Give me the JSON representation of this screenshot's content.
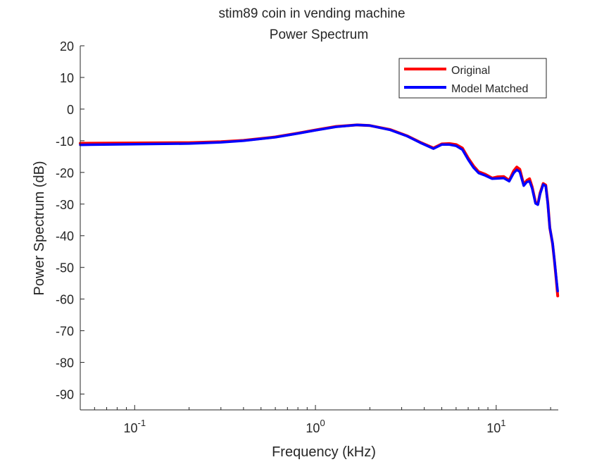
{
  "chart_data": {
    "type": "line",
    "title": [
      "stim89 coin in vending machine",
      "Power Spectrum"
    ],
    "xlabel": "Frequency (kHz)",
    "ylabel": "Power Spectrum (dB)",
    "xscale": "log",
    "xlim": [
      0.05,
      22.05
    ],
    "ylim": [
      -95,
      20
    ],
    "x_ticks": [
      0.1,
      1,
      10
    ],
    "x_tick_labels": [
      {
        "base": "10",
        "exp": "-1"
      },
      {
        "base": "10",
        "exp": "0"
      },
      {
        "base": "10",
        "exp": "1"
      }
    ],
    "y_ticks": [
      20,
      10,
      0,
      -10,
      -20,
      -30,
      -40,
      -50,
      -60,
      -70,
      -80,
      -90
    ],
    "y_tick_labels": [
      "20",
      "10",
      "0",
      "-10",
      "-20",
      "-30",
      "-40",
      "-50",
      "-60",
      "-70",
      "-80",
      "-90"
    ],
    "grid": false,
    "legend_position": "top-right",
    "series": [
      {
        "name": "Original",
        "color": "#ff0000",
        "x": [
          0.05,
          0.1,
          0.2,
          0.3,
          0.4,
          0.6,
          0.8,
          1.0,
          1.3,
          1.7,
          2.0,
          2.6,
          3.2,
          3.8,
          4.5,
          5.0,
          5.5,
          6.0,
          6.5,
          7.0,
          7.5,
          8.0,
          8.7,
          9.5,
          10.2,
          11.0,
          11.8,
          12.5,
          13.0,
          13.5,
          14.2,
          14.8,
          15.3,
          15.8,
          16.5,
          17.0,
          17.5,
          18.2,
          18.8,
          19.3,
          19.8,
          20.5,
          21.0,
          21.5,
          21.9
        ],
        "y": [
          -10.8,
          -10.7,
          -10.6,
          -10.3,
          -9.9,
          -8.8,
          -7.6,
          -6.6,
          -5.5,
          -5.0,
          -5.2,
          -6.5,
          -8.4,
          -10.5,
          -12.3,
          -11.0,
          -10.9,
          -11.2,
          -12.3,
          -15.5,
          -18.0,
          -19.8,
          -20.6,
          -21.8,
          -21.4,
          -21.3,
          -22.5,
          -19.5,
          -18.3,
          -19.0,
          -23.8,
          -22.5,
          -22.0,
          -24.5,
          -29.5,
          -30.0,
          -26.5,
          -23.5,
          -24.0,
          -29.5,
          -37.5,
          -42.5,
          -48.0,
          -54.0,
          -59.0
        ]
      },
      {
        "name": "Model Matched",
        "color": "#0000ff",
        "x": [
          0.05,
          0.1,
          0.2,
          0.3,
          0.4,
          0.6,
          0.8,
          1.0,
          1.3,
          1.7,
          2.0,
          2.6,
          3.2,
          3.8,
          4.5,
          5.0,
          5.5,
          6.0,
          6.5,
          7.0,
          7.5,
          8.0,
          8.7,
          9.5,
          10.2,
          11.0,
          11.8,
          12.5,
          13.0,
          13.5,
          14.2,
          14.8,
          15.3,
          15.8,
          16.5,
          17.0,
          17.5,
          18.2,
          18.8,
          19.3,
          19.8,
          20.5,
          21.0,
          21.5,
          21.9
        ],
        "y": [
          -11.3,
          -11.1,
          -10.9,
          -10.5,
          -10.0,
          -8.9,
          -7.7,
          -6.7,
          -5.6,
          -5.0,
          -5.2,
          -6.6,
          -8.5,
          -10.6,
          -12.5,
          -11.2,
          -11.2,
          -11.6,
          -12.8,
          -16.0,
          -18.5,
          -20.2,
          -21.0,
          -22.0,
          -21.9,
          -21.8,
          -22.8,
          -20.2,
          -19.2,
          -19.8,
          -24.2,
          -23.0,
          -22.8,
          -25.0,
          -29.8,
          -30.2,
          -26.8,
          -23.8,
          -24.3,
          -29.8,
          -37.5,
          -42.3,
          -47.8,
          -53.5,
          -57.5
        ]
      }
    ]
  }
}
